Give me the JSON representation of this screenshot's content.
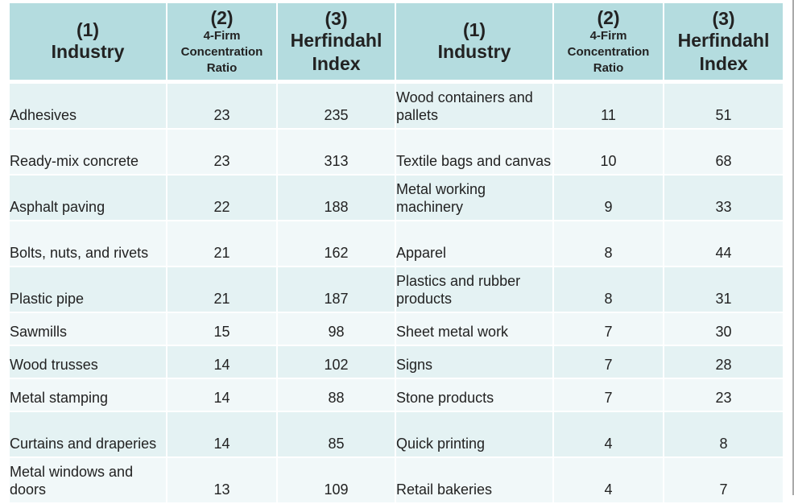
{
  "table": {
    "headers": [
      {
        "num": "(1)",
        "label": "Industry"
      },
      {
        "num": "(2)",
        "label": "4-Firm Concentration Ratio"
      },
      {
        "num": "(3)",
        "label": "Herfindahl Index"
      },
      {
        "num": "(1)",
        "label": "Industry"
      },
      {
        "num": "(2)",
        "label": "4-Firm Concentration Ratio"
      },
      {
        "num": "(3)",
        "label": "Herfindahl Index"
      }
    ],
    "rows": [
      {
        "left": {
          "industry": "Adhesives",
          "cr4": "23",
          "hhi": "235"
        },
        "right": {
          "industry": "Wood containers and pallets",
          "cr4": "11",
          "hhi": "51"
        }
      },
      {
        "left": {
          "industry": "Ready-mix concrete",
          "cr4": "23",
          "hhi": "313"
        },
        "right": {
          "industry": "Textile bags and canvas",
          "cr4": "10",
          "hhi": "68"
        }
      },
      {
        "left": {
          "industry": "Asphalt paving",
          "cr4": "22",
          "hhi": "188"
        },
        "right": {
          "industry": "Metal working machinery",
          "cr4": "9",
          "hhi": "33"
        }
      },
      {
        "left": {
          "industry": "Bolts, nuts, and rivets",
          "cr4": "21",
          "hhi": "162"
        },
        "right": {
          "industry": "Apparel",
          "cr4": "8",
          "hhi": "44"
        }
      },
      {
        "left": {
          "industry": "Plastic pipe",
          "cr4": "21",
          "hhi": "187"
        },
        "right": {
          "industry": "Plastics and rubber products",
          "cr4": "8",
          "hhi": "31"
        }
      },
      {
        "left": {
          "industry": "Sawmills",
          "cr4": "15",
          "hhi": "98"
        },
        "right": {
          "industry": "Sheet metal work",
          "cr4": "7",
          "hhi": "30"
        }
      },
      {
        "left": {
          "industry": "Wood trusses",
          "cr4": "14",
          "hhi": "102"
        },
        "right": {
          "industry": "Signs",
          "cr4": "7",
          "hhi": "28"
        }
      },
      {
        "left": {
          "industry": "Metal stamping",
          "cr4": "14",
          "hhi": "88"
        },
        "right": {
          "industry": "Stone products",
          "cr4": "7",
          "hhi": "23"
        }
      },
      {
        "left": {
          "industry": "Curtains and draperies",
          "cr4": "14",
          "hhi": "85"
        },
        "right": {
          "industry": "Quick printing",
          "cr4": "4",
          "hhi": "8"
        }
      },
      {
        "left": {
          "industry": "Metal windows and doors",
          "cr4": "13",
          "hhi": "109"
        },
        "right": {
          "industry": "Retail bakeries",
          "cr4": "4",
          "hhi": "7"
        }
      }
    ]
  }
}
